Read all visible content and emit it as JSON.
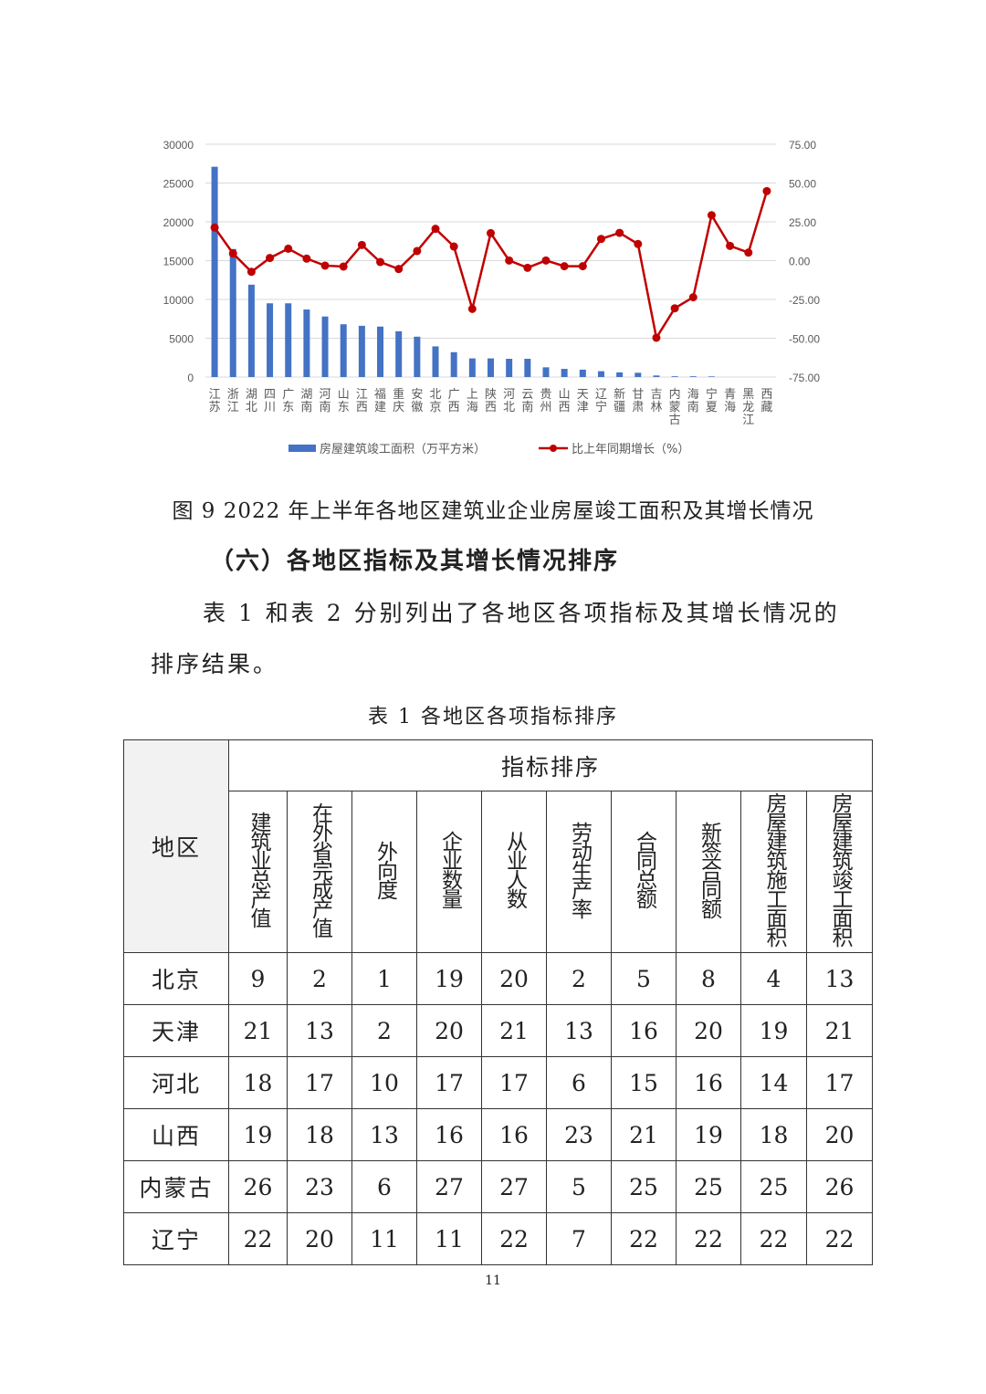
{
  "chart_data": {
    "type": "bar+line",
    "categories": [
      "江苏",
      "浙江",
      "湖北",
      "四川",
      "广东",
      "湖南",
      "河南",
      "山东",
      "江西",
      "福建",
      "重庆",
      "安徽",
      "北京",
      "广西",
      "上海",
      "陕西",
      "河北",
      "云南",
      "贵州",
      "山西",
      "天津",
      "辽宁",
      "新疆",
      "甘肃",
      "吉林",
      "内蒙古",
      "海南",
      "宁夏",
      "青海",
      "黑龙江",
      "西藏"
    ],
    "series": [
      {
        "name": "房屋建筑竣工面积（万平方米）",
        "type": "bar",
        "axis": "left",
        "color": "#4472C4",
        "values": [
          27100,
          16500,
          11900,
          9500,
          9500,
          8700,
          7800,
          6800,
          6600,
          6500,
          5900,
          5200,
          3950,
          3200,
          2400,
          2400,
          2350,
          2350,
          1250,
          1050,
          950,
          750,
          600,
          550,
          200,
          100,
          100,
          80,
          0,
          0,
          0
        ]
      },
      {
        "name": "比上年同期增长（%）",
        "type": "line",
        "axis": "right",
        "color": "#C00000",
        "values": [
          21.3,
          4.6,
          -7.2,
          1.7,
          7.7,
          1.3,
          -3.2,
          -3.8,
          10.1,
          -0.9,
          -5.4,
          6.2,
          20.5,
          9.1,
          -31.1,
          17.7,
          0.1,
          -4.6,
          0.1,
          -3.6,
          -3.6,
          14.0,
          17.9,
          10.7,
          -49.7,
          -30.7,
          -23.6,
          29.3,
          9.5,
          5.2,
          44.8
        ]
      }
    ],
    "left_ticks": [
      "0",
      "5000",
      "10000",
      "15000",
      "20000",
      "25000",
      "30000"
    ],
    "right_ticks": [
      "-75.00",
      "-50.00",
      "-25.00",
      "0.00",
      "25.00",
      "50.00",
      "75.00"
    ],
    "ylim_left": [
      0,
      30000
    ],
    "ylim_right": [
      -75,
      75
    ],
    "grid": true,
    "legend": "bottom"
  },
  "figure_caption": "图 9  2022 年上半年各地区建筑业企业房屋竣工面积及其增长情况",
  "section_heading": "（六）各地区指标及其增长情况排序",
  "paragraph_line1": "表 1 和表 2 分别列出了各地区各项指标及其增长情况的",
  "paragraph_line2": "排序结果。",
  "table_caption": "表 1 各地区各项指标排序",
  "table": {
    "region_header": "地区",
    "group_header": "指标排序",
    "columns": [
      "建筑业总产值",
      "在外省完成产值",
      "外向度",
      "企业数量",
      "从业人数",
      "劳动生产率",
      "合同总额",
      "新签合同额",
      "房屋建筑施工面积",
      "房屋建筑竣工面积"
    ],
    "rows": [
      {
        "region": "北京",
        "values": [
          "9",
          "2",
          "1",
          "19",
          "20",
          "2",
          "5",
          "8",
          "4",
          "13"
        ]
      },
      {
        "region": "天津",
        "values": [
          "21",
          "13",
          "2",
          "20",
          "21",
          "13",
          "16",
          "20",
          "19",
          "21"
        ]
      },
      {
        "region": "河北",
        "values": [
          "18",
          "17",
          "10",
          "17",
          "17",
          "6",
          "15",
          "16",
          "14",
          "17"
        ]
      },
      {
        "region": "山西",
        "values": [
          "19",
          "18",
          "13",
          "16",
          "16",
          "23",
          "21",
          "19",
          "18",
          "20"
        ]
      },
      {
        "region": "内蒙古",
        "values": [
          "26",
          "23",
          "6",
          "27",
          "27",
          "5",
          "25",
          "25",
          "25",
          "26"
        ]
      },
      {
        "region": "辽宁",
        "values": [
          "22",
          "20",
          "11",
          "11",
          "22",
          "7",
          "22",
          "22",
          "22",
          "22"
        ]
      }
    ]
  },
  "page_number": "11"
}
